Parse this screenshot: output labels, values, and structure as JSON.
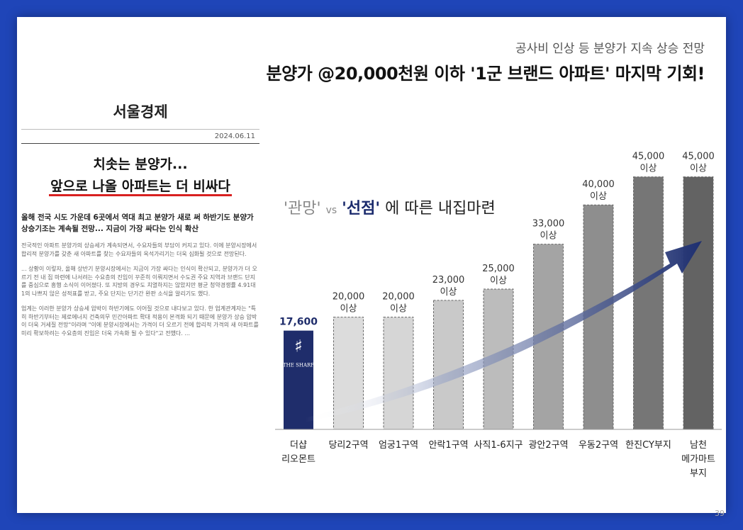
{
  "header": {
    "subtitle": "공사비 인상 등 분양가 지속 상승 전망",
    "headline": "분양가 @20,000천원 이하 '1군 브랜드 아파트' 마지막 기회!"
  },
  "article": {
    "paper": "서울경제",
    "date": "2024.06.11",
    "title_line1": "치솟는 분양가...",
    "title_line2": "앞으로 나올 아파트는 더 비싸다",
    "lead": "올해 전국 시도 가운데 6곳에서 역대 최고 분양가 새로 써 하반기도 분양가 상승기조는 계속될 전망... 지금이 가장 싸다는 인식 확산",
    "para1": "전국적인 아파트 분양가의 상승세가 계속되면서, 수요자들의 부담이 커지고 있다. 이에 분양시장에서 합리적 분양가를 갖춘 새 아파트를 찾는 수요자들의 옥석가리기는 더욱 심화될 것으로 전망된다.",
    "para2": "... 상황이 이렇자, 올해 상반기 분양시장에서는 지금이 가장 싸다는 인식이 확산되고, 분양가가 더 오르기 전 내 집 마련에 나서려는 수요층의 진입이 꾸준히 이뤄지면서 수도권 주요 지역과 브랜드 단지를 중심으로 흥행 소식이 이어졌다. 또 지방의 경우도 치열하지는 않았지만 평균 청약경쟁률 4.91대 1의 나쁘지 않은 성적표를 받고, 주요 단지는 단기간 완판 소식을 알리기도 했다.",
    "para3": "업계는 이러한 분양가 상승세 압박이 하반기에도 이어질 것으로 내다보고 있다. 한 업계관계자는 \"특히 하반기부터는 제로에너지 건축의무 민간아파트 확대 적용이 본격화 되기 때문에 분양가 상승 압박이 더욱 거세질 전망\"이라며 \"이에 분양시장에서는 가격이 더 오르기 전에 합리적 가격의 새 아파트를 미리 확보하려는 수요층의 진입은 더욱 가속화 될 수 있다\"고 전했다. ..."
  },
  "chart_title": {
    "quote1": "'관망'",
    "vs": "vs",
    "quote2": "'선점'",
    "rest": "에 따른 내집마련"
  },
  "chart_data": {
    "type": "bar",
    "categories": [
      "더샵\n리오몬트",
      "당리2구역",
      "엄궁1구역",
      "안락1구역",
      "사직1-6지구",
      "광안2구역",
      "우동2구역",
      "한진CY부지",
      "남천\n메가마트\n부지"
    ],
    "values": [
      17600,
      20000,
      20000,
      23000,
      25000,
      33000,
      40000,
      45000,
      45000
    ],
    "value_labels": [
      "17,600",
      "20,000\n이상",
      "20,000\n이상",
      "23,000\n이상",
      "25,000\n이상",
      "33,000\n이상",
      "40,000\n이상",
      "45,000\n이상",
      "45,000\n이상"
    ],
    "highlight_logo": "THE SHARP",
    "ylim": [
      0,
      50000
    ],
    "colors": {
      "highlight": "#1f2d6b",
      "bars": [
        "#1f2d6b",
        "#dcdcdc",
        "#d6d6d6",
        "#c9c9c9",
        "#bcbcbc",
        "#a4a4a4",
        "#8e8e8e",
        "#767676",
        "#636363"
      ],
      "arrow": "#1e2f70"
    }
  },
  "page_number": "39"
}
